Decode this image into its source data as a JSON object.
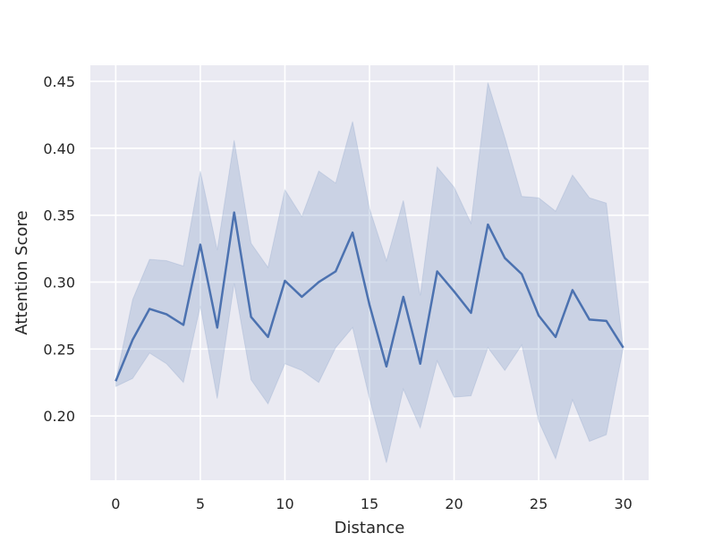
{
  "chart_data": {
    "type": "line",
    "title": "",
    "xlabel": "Distance",
    "ylabel": "Attention Score",
    "xlim": [
      -1.5,
      31.5
    ],
    "ylim": [
      0.152,
      0.462
    ],
    "xticks": [
      0,
      5,
      10,
      15,
      20,
      25,
      30
    ],
    "yticks": [
      0.2,
      0.25,
      0.3,
      0.35,
      0.4,
      0.45
    ],
    "grid": true,
    "legend": "none",
    "colors": {
      "line": "#4c72b0",
      "band": "#4c72b0",
      "plot_bg": "#eaeaf2",
      "grid": "#ffffff"
    },
    "series": [
      {
        "x": [
          0,
          1,
          2,
          3,
          4,
          5,
          6,
          7,
          8,
          9,
          10,
          11,
          12,
          13,
          14,
          15,
          16,
          17,
          18,
          19,
          20,
          21,
          22,
          23,
          24,
          25,
          26,
          27,
          28,
          29,
          30
        ],
        "y": [
          0.226,
          0.257,
          0.28,
          0.276,
          0.268,
          0.328,
          0.266,
          0.352,
          0.274,
          0.259,
          0.301,
          0.289,
          0.3,
          0.308,
          0.337,
          0.283,
          0.237,
          0.289,
          0.239,
          0.308,
          0.293,
          0.277,
          0.343,
          0.318,
          0.306,
          0.275,
          0.259,
          0.294,
          0.272,
          0.271,
          0.251
        ],
        "lower": [
          0.222,
          0.228,
          0.247,
          0.239,
          0.225,
          0.282,
          0.213,
          0.299,
          0.227,
          0.209,
          0.239,
          0.234,
          0.225,
          0.251,
          0.266,
          0.213,
          0.165,
          0.22,
          0.191,
          0.241,
          0.214,
          0.215,
          0.251,
          0.234,
          0.253,
          0.196,
          0.168,
          0.212,
          0.181,
          0.186,
          0.251
        ],
        "upper": [
          0.226,
          0.287,
          0.317,
          0.316,
          0.312,
          0.383,
          0.324,
          0.406,
          0.329,
          0.311,
          0.369,
          0.349,
          0.383,
          0.374,
          0.42,
          0.355,
          0.316,
          0.361,
          0.29,
          0.386,
          0.371,
          0.344,
          0.449,
          0.408,
          0.364,
          0.363,
          0.353,
          0.38,
          0.363,
          0.359,
          0.251
        ]
      }
    ]
  }
}
